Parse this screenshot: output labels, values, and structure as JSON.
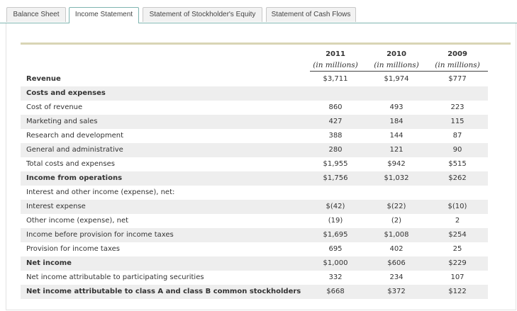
{
  "tabs": {
    "items": [
      "Balance Sheet",
      "Income Statement",
      "Statement of Stockholder's Equity",
      "Statement of Cash Flows"
    ],
    "active": 1
  },
  "table": {
    "columns": [
      {
        "year": "2011",
        "unit": "(in millions)"
      },
      {
        "year": "2010",
        "unit": "(in millions)"
      },
      {
        "year": "2009",
        "unit": "(in millions)"
      }
    ],
    "rows": [
      {
        "label": "Revenue",
        "bold": true,
        "values": [
          "$3,711",
          "$1,974",
          "$777"
        ]
      },
      {
        "label": "Costs and expenses",
        "bold": true,
        "values": []
      },
      {
        "label": "Cost of revenue",
        "bold": false,
        "values": [
          "860",
          "493",
          "223"
        ]
      },
      {
        "label": "Marketing and sales",
        "bold": false,
        "values": [
          "427",
          "184",
          "115"
        ]
      },
      {
        "label": "Research and development",
        "bold": false,
        "values": [
          "388",
          "144",
          "87"
        ]
      },
      {
        "label": "General and administrative",
        "bold": false,
        "values": [
          "280",
          "121",
          "90"
        ]
      },
      {
        "label": "Total costs and expenses",
        "bold": false,
        "values": [
          "$1,955",
          "$942",
          "$515"
        ]
      },
      {
        "label": "Income from operations",
        "bold": true,
        "values": [
          "$1,756",
          "$1,032",
          "$262"
        ]
      },
      {
        "label": "Interest and other income (expense), net:",
        "bold": false,
        "values": []
      },
      {
        "label": "Interest expense",
        "bold": false,
        "values": [
          "$(42)",
          "$(22)",
          "$(10)"
        ]
      },
      {
        "label": "Other income (expense), net",
        "bold": false,
        "values": [
          "(19)",
          "(2)",
          "2"
        ]
      },
      {
        "label": "Income before provision for income taxes",
        "bold": false,
        "values": [
          "$1,695",
          "$1,008",
          "$254"
        ]
      },
      {
        "label": "Provision for income taxes",
        "bold": false,
        "values": [
          "695",
          "402",
          "25"
        ]
      },
      {
        "label": "Net income",
        "bold": true,
        "values": [
          "$1,000",
          "$606",
          "$229"
        ]
      },
      {
        "label": "Net income attributable to participating securities",
        "bold": false,
        "values": [
          "332",
          "234",
          "107"
        ]
      },
      {
        "label": "Net income attributable to class A and class B common stockholders",
        "bold": true,
        "values": [
          "$668",
          "$372",
          "$122"
        ]
      }
    ]
  }
}
